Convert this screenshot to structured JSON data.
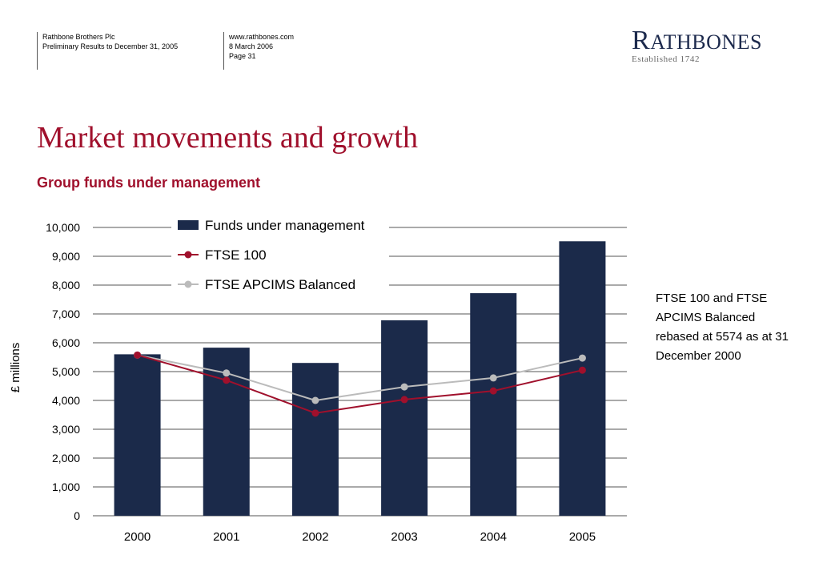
{
  "header": {
    "company": "Rathbone Brothers Plc",
    "doc_title": "Preliminary Results to December 31, 2005",
    "website": "www.rathbones.com",
    "date": "8 March 2006",
    "page": "Page 31"
  },
  "logo": {
    "initial": "R",
    "rest": "ATHBONES",
    "established": "Established 1742"
  },
  "slide": {
    "title": "Market movements and growth",
    "subtitle": "Group funds under management",
    "note": "FTSE 100 and FTSE APCIMS Balanced rebased at 5574 as at 31 December 2000"
  },
  "colors": {
    "title": "#a0102c",
    "bar": "#1b2a4a",
    "ftse100": "#a0102c",
    "apcims": "#bbbbbb"
  },
  "chart_data": {
    "type": "bar",
    "categories": [
      "2000",
      "2001",
      "2002",
      "2003",
      "2004",
      "2005"
    ],
    "ylabel": "£ millions",
    "ylim": [
      0,
      10000
    ],
    "yticks": [
      0,
      1000,
      2000,
      3000,
      4000,
      5000,
      6000,
      7000,
      8000,
      9000,
      10000
    ],
    "ytick_labels": [
      "0",
      "1,000",
      "2,000",
      "3,000",
      "4,000",
      "5,000",
      "6,000",
      "7,000",
      "8,000",
      "9,000",
      "10,000"
    ],
    "grid": true,
    "legend": "top",
    "series": [
      {
        "name": "Funds under management",
        "kind": "bar",
        "values": [
          5600,
          5830,
          5300,
          6780,
          7720,
          9520
        ]
      },
      {
        "name": "FTSE 100",
        "kind": "line",
        "values": [
          5574,
          4700,
          3560,
          4030,
          4330,
          5050
        ]
      },
      {
        "name": "FTSE APCIMS Balanced",
        "kind": "line",
        "values": [
          5574,
          4950,
          4000,
          4470,
          4780,
          5470
        ]
      }
    ]
  }
}
